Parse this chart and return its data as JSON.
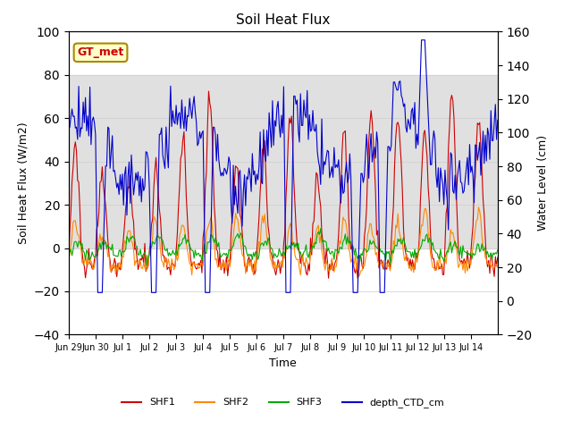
{
  "title": "Soil Heat Flux",
  "ylabel_left": "Soil Heat Flux (W/m2)",
  "ylabel_right": "Water Level (cm)",
  "xlabel": "Time",
  "ylim_left": [
    -40,
    100
  ],
  "ylim_right": [
    -20,
    160
  ],
  "legend_labels": [
    "SHF1",
    "SHF2",
    "SHF3",
    "depth_CTD_cm"
  ],
  "line_colors": [
    "#cc0000",
    "#ff8800",
    "#00aa00",
    "#0000cc"
  ],
  "annotation_text": "GT_met",
  "annotation_color": "#cc0000",
  "annotation_bg": "#ffffcc",
  "annotation_border": "#aa8800",
  "bg_band_ylim": [
    0,
    80
  ],
  "bg_band_color": "#e0e0e0",
  "tick_dates": [
    "Jun 29",
    "Jun 30",
    "Jul 1",
    "Jul 2",
    "Jul 3",
    "Jul 4",
    "Jul 5",
    "Jul 6",
    "Jul 7",
    "Jul 8",
    "Jul 9",
    "Jul 10",
    "Jul 11",
    "Jul 12",
    "Jul 13",
    "Jul 14"
  ],
  "yticks_left": [
    -40,
    -20,
    0,
    20,
    40,
    60,
    80,
    100
  ],
  "yticks_right": [
    -20,
    0,
    20,
    40,
    60,
    80,
    100,
    120,
    140,
    160
  ],
  "grid_color": "#cccccc",
  "figure_bg": "#ffffff"
}
